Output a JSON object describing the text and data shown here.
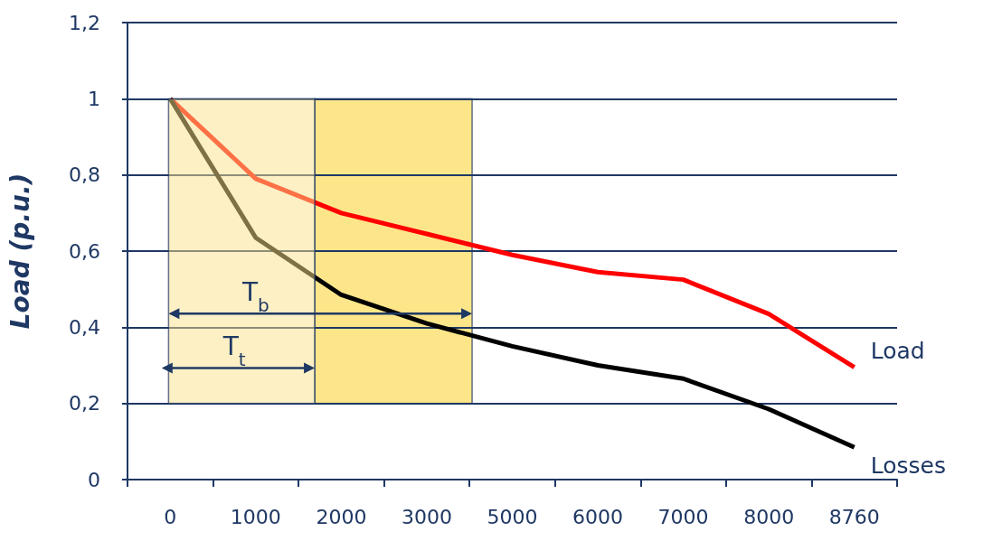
{
  "chart_data": {
    "type": "line",
    "ylabel": "Load (p.u.)",
    "categories": [
      "0",
      "1000",
      "2000",
      "3000",
      "5000",
      "6000",
      "7000",
      "8000",
      "8760"
    ],
    "series": [
      {
        "name": "Load",
        "color": "#ff0000",
        "values": [
          1.0,
          0.79,
          0.7,
          0.645,
          0.59,
          0.545,
          0.525,
          0.435,
          0.295
        ]
      },
      {
        "name": "Losses",
        "color": "#000000",
        "values": [
          1.0,
          0.635,
          0.485,
          0.41,
          0.35,
          0.3,
          0.265,
          0.185,
          0.085
        ]
      }
    ],
    "ylim": [
      0,
      1.2
    ],
    "yticks": [
      0,
      {
        "value": 0.2,
        "label": "0,2"
      },
      {
        "value": 0.4,
        "label": "0,4"
      },
      {
        "value": 0.6,
        "label": "0,6"
      },
      {
        "value": 0.8,
        "label": "0,8"
      },
      1,
      {
        "value": 1.2,
        "label": "1,2"
      }
    ],
    "grid": "y",
    "legend": false,
    "marker": "none",
    "line_style": "solid",
    "annotations": [
      "T$_{b}$",
      "T$_{t}$"
    ]
  }
}
